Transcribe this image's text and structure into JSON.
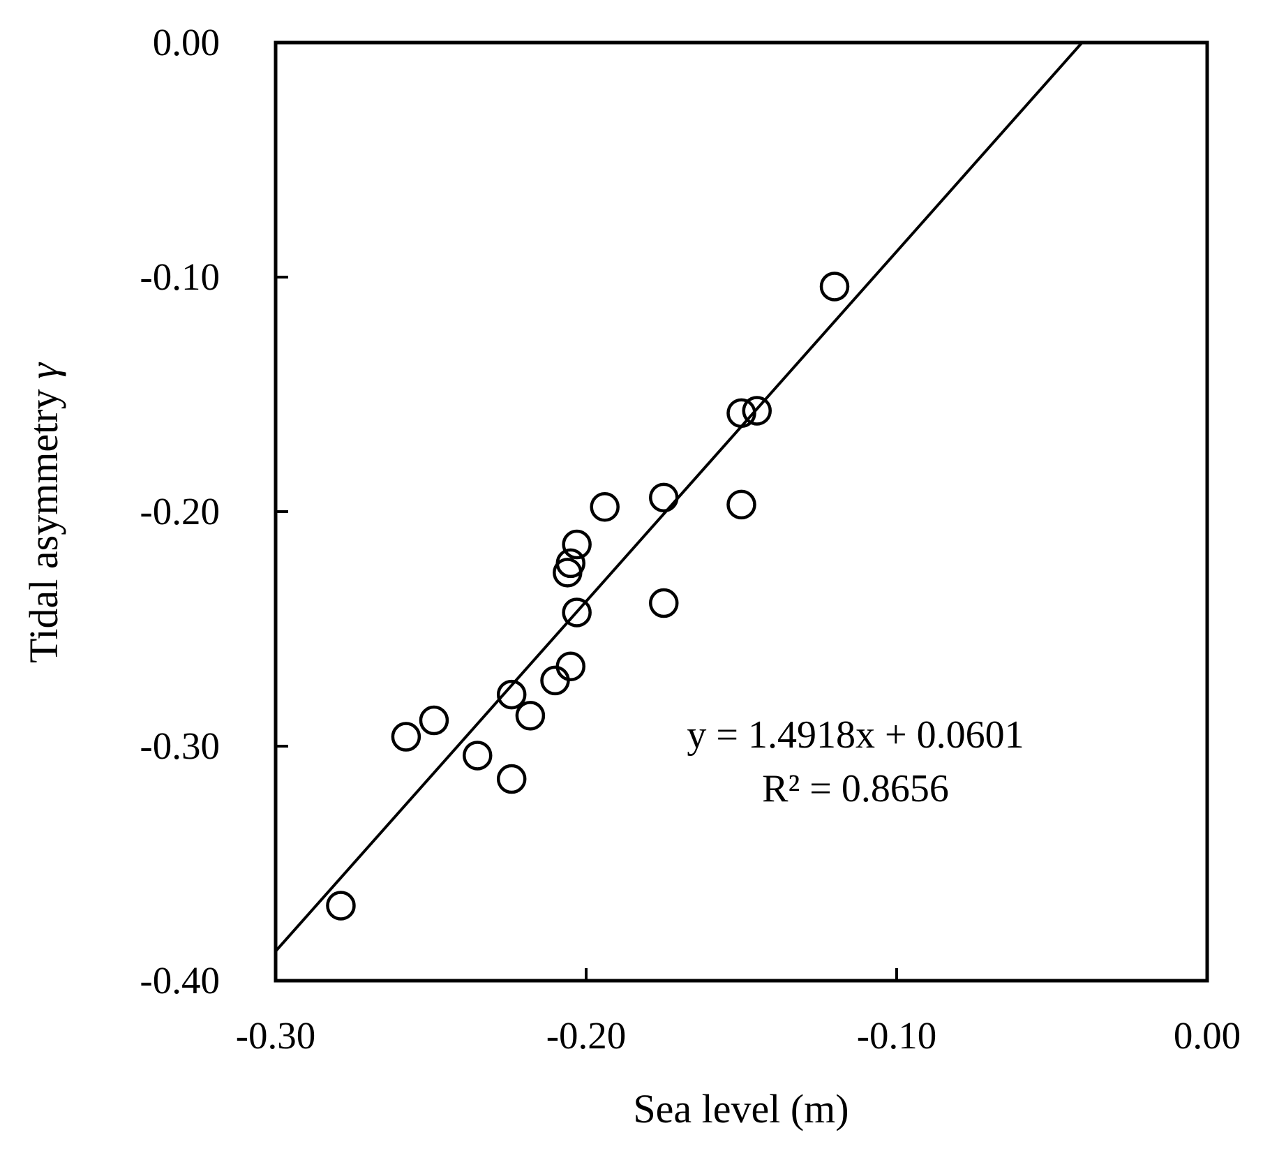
{
  "chart_data": {
    "type": "scatter",
    "title": "",
    "xlabel": "Sea level (m)",
    "ylabel": "Tidal asymmetry",
    "ylabel_symbol": "γ",
    "xlim": [
      -0.3,
      0.0
    ],
    "ylim": [
      -0.4,
      0.0
    ],
    "x_ticks": [
      -0.3,
      -0.2,
      -0.1,
      0.0
    ],
    "x_tick_labels": [
      "-0.30",
      "-0.20",
      "-0.10",
      "0.00"
    ],
    "y_ticks": [
      -0.4,
      -0.3,
      -0.2,
      -0.1,
      0.0
    ],
    "y_tick_labels": [
      "-0.40",
      "-0.30",
      "-0.20",
      "-0.10",
      "0.00"
    ],
    "grid": false,
    "legend": "none",
    "marker": "open-circle",
    "points": [
      {
        "x": -0.279,
        "y": -0.368
      },
      {
        "x": -0.258,
        "y": -0.296
      },
      {
        "x": -0.249,
        "y": -0.289
      },
      {
        "x": -0.235,
        "y": -0.304
      },
      {
        "x": -0.224,
        "y": -0.278
      },
      {
        "x": -0.224,
        "y": -0.314
      },
      {
        "x": -0.218,
        "y": -0.287
      },
      {
        "x": -0.21,
        "y": -0.272
      },
      {
        "x": -0.205,
        "y": -0.266
      },
      {
        "x": -0.203,
        "y": -0.243
      },
      {
        "x": -0.206,
        "y": -0.226
      },
      {
        "x": -0.205,
        "y": -0.222
      },
      {
        "x": -0.203,
        "y": -0.214
      },
      {
        "x": -0.194,
        "y": -0.198
      },
      {
        "x": -0.175,
        "y": -0.194
      },
      {
        "x": -0.175,
        "y": -0.239
      },
      {
        "x": -0.15,
        "y": -0.197
      },
      {
        "x": -0.15,
        "y": -0.158
      },
      {
        "x": -0.145,
        "y": -0.157
      },
      {
        "x": -0.12,
        "y": -0.104
      }
    ],
    "trendline": {
      "slope": 1.4918,
      "intercept": 0.0601
    },
    "annotations": [
      "y = 1.4918x + 0.0601",
      "R² = 0.8656"
    ]
  }
}
